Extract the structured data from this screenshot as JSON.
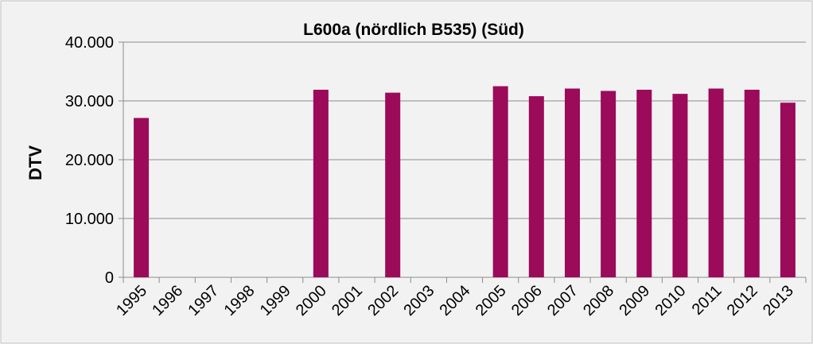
{
  "chart_data": {
    "type": "bar",
    "title": "L600a (nördlich B535) (Süd)",
    "y_label": "DTV",
    "categories": [
      "1995",
      "1996",
      "1997",
      "1998",
      "1999",
      "2000",
      "2001",
      "2002",
      "2003",
      "2004",
      "2005",
      "2006",
      "2007",
      "2008",
      "2009",
      "2010",
      "2011",
      "2012",
      "2013"
    ],
    "values": [
      27100,
      null,
      null,
      null,
      null,
      31900,
      null,
      31400,
      null,
      null,
      32500,
      30800,
      32100,
      31700,
      31900,
      31200,
      32100,
      31900,
      29700
    ],
    "color": "#9c0a5a",
    "ylim": [
      0,
      40000
    ],
    "yticks": [
      0,
      {
        "value": 10000,
        "label": "10.000"
      },
      {
        "value": 20000,
        "label": "20.000"
      },
      {
        "value": 30000,
        "label": "30.000"
      },
      {
        "value": 40000,
        "label": "40.000"
      }
    ],
    "grid": true
  }
}
